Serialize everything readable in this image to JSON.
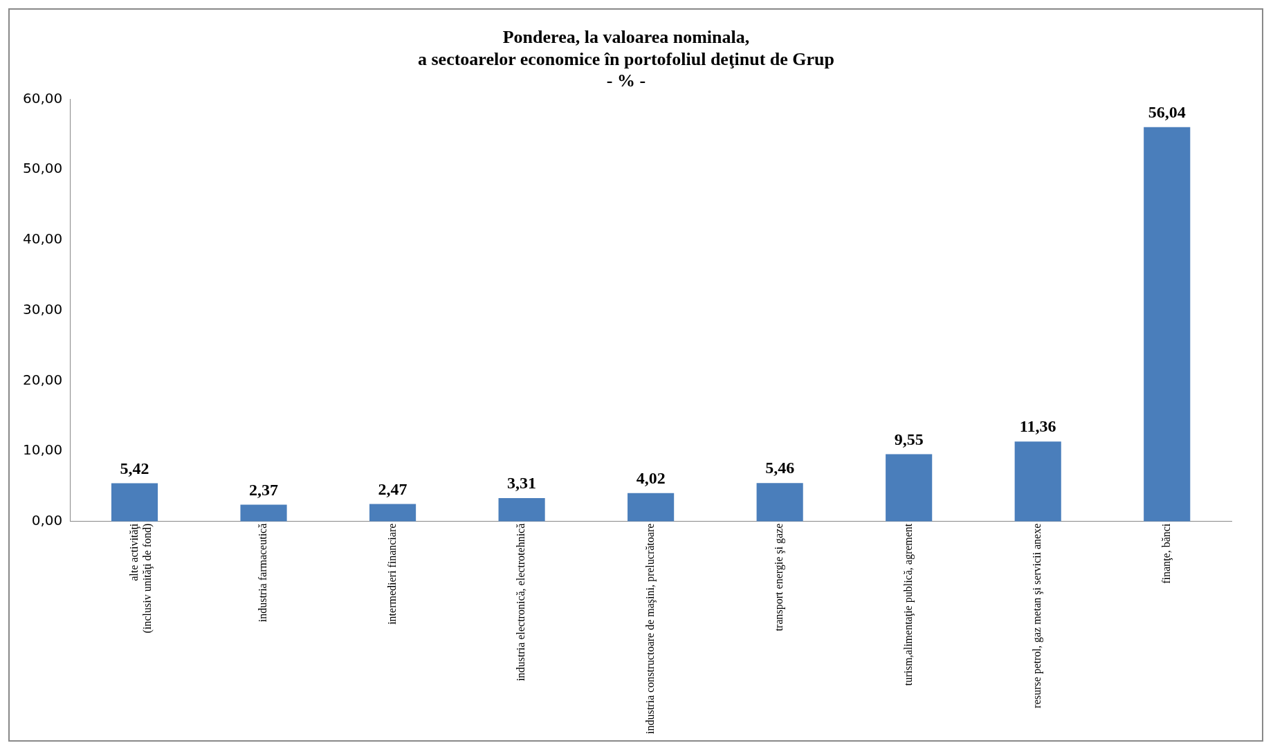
{
  "chart_data": {
    "type": "bar",
    "title": "Ponderea, la valoarea nominala,\na sectoarelor economice în portofoliul deţinut de Grup",
    "subtitle": "- % -",
    "categories": [
      "alte activităţi\n(inclusiv unităţi de fond)",
      "industria farmaceutică",
      "intermedieri financiare",
      "industria electronică, electrotehnică",
      "industria constructoare de maşini, prelucrătoare",
      "transport energie şi gaze",
      "turism,alimentaţie publică, agrement",
      "resurse petrol, gaz metan şi servicii anexe",
      "finanţe, bănci"
    ],
    "values": [
      5.42,
      2.37,
      2.47,
      3.31,
      4.02,
      5.46,
      9.55,
      11.36,
      56.04
    ],
    "value_labels": [
      "5,42",
      "2,37",
      "2,47",
      "3,31",
      "4,02",
      "5,46",
      "9,55",
      "11,36",
      "56,04"
    ],
    "color": "#4a7ebb",
    "ylim": [
      0,
      60
    ],
    "yticks": [
      {
        "value": 0,
        "label": "0,00"
      },
      {
        "value": 10,
        "label": "10,00"
      },
      {
        "value": 20,
        "label": "20,00"
      },
      {
        "value": 30,
        "label": "30,00"
      },
      {
        "value": 40,
        "label": "40,00"
      },
      {
        "value": 50,
        "label": "50,00"
      },
      {
        "value": 60,
        "label": "60,00"
      }
    ],
    "grid": false,
    "legend": false
  }
}
